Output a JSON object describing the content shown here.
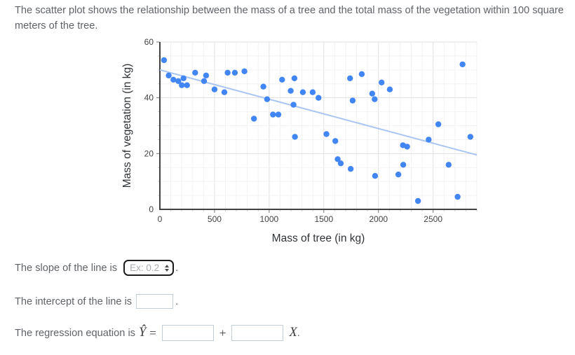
{
  "intro": {
    "text": "The scatter plot shows the relationship between the mass of a tree and the total mass of the vegetation within 100 square meters of the tree."
  },
  "questions": {
    "slope": {
      "prefix": "The slope of the line is ",
      "placeholder": "Ex: 0.2",
      "suffix": "."
    },
    "intercept": {
      "prefix": "The intercept of the line is",
      "suffix": "."
    },
    "equation": {
      "prefix": "The regression equation is",
      "y_symbol": "Ŷ",
      "equals": "=",
      "plus": "+",
      "x_symbol": "X",
      "suffix": "."
    }
  },
  "chart_data": {
    "type": "scatter",
    "title": "",
    "xlabel": "Mass of tree (in kg)",
    "ylabel": "Mass of vegetation (in kg)",
    "xlim": [
      0,
      2900
    ],
    "ylim": [
      0,
      60
    ],
    "x_ticks": [
      0,
      500,
      1000,
      1500,
      2000,
      2500
    ],
    "y_ticks": [
      0,
      20,
      40,
      60
    ],
    "x_minor_step": 100,
    "y_minor_step": 5,
    "grid": true,
    "legend": "none",
    "point_color": "#4285f4",
    "trend_color": "#a9c5f2",
    "axis_color": "#424242",
    "tick_label_color": "#424242",
    "axis_title_color": "#2f3336",
    "points": [
      [
        38,
        53.5
      ],
      [
        81,
        48
      ],
      [
        124,
        46.5
      ],
      [
        169,
        46
      ],
      [
        201,
        44.5
      ],
      [
        216,
        47
      ],
      [
        248,
        44.5
      ],
      [
        323,
        49
      ],
      [
        404,
        46
      ],
      [
        423,
        48
      ],
      [
        500,
        43
      ],
      [
        590,
        42
      ],
      [
        620,
        49
      ],
      [
        686,
        49
      ],
      [
        774,
        49.5
      ],
      [
        861,
        32.5
      ],
      [
        947,
        44
      ],
      [
        981,
        39.5
      ],
      [
        1035,
        34
      ],
      [
        1084,
        34
      ],
      [
        1118,
        46.5
      ],
      [
        1197,
        42.5
      ],
      [
        1223,
        37.5
      ],
      [
        1231,
        47
      ],
      [
        1236,
        26
      ],
      [
        1308,
        42
      ],
      [
        1398,
        42
      ],
      [
        1451,
        40
      ],
      [
        1524,
        27
      ],
      [
        1605,
        24.5
      ],
      [
        1627,
        18
      ],
      [
        1655,
        16.5
      ],
      [
        1740,
        47
      ],
      [
        1746,
        14.5
      ],
      [
        1764,
        39
      ],
      [
        1847,
        48.5
      ],
      [
        1943,
        41.5
      ],
      [
        1965,
        39.5
      ],
      [
        1969,
        12
      ],
      [
        2029,
        45.5
      ],
      [
        2104,
        43
      ],
      [
        2182,
        12.5
      ],
      [
        2224,
        23
      ],
      [
        2262,
        22.5
      ],
      [
        2227,
        16
      ],
      [
        2362,
        3
      ],
      [
        2459,
        25
      ],
      [
        2548,
        30.5
      ],
      [
        2642,
        16
      ],
      [
        2724,
        4.5
      ],
      [
        2769,
        52
      ],
      [
        2841,
        26
      ]
    ],
    "trendline": {
      "x1": 0,
      "y1": 50,
      "x2": 2900,
      "y2": 19.5
    }
  }
}
